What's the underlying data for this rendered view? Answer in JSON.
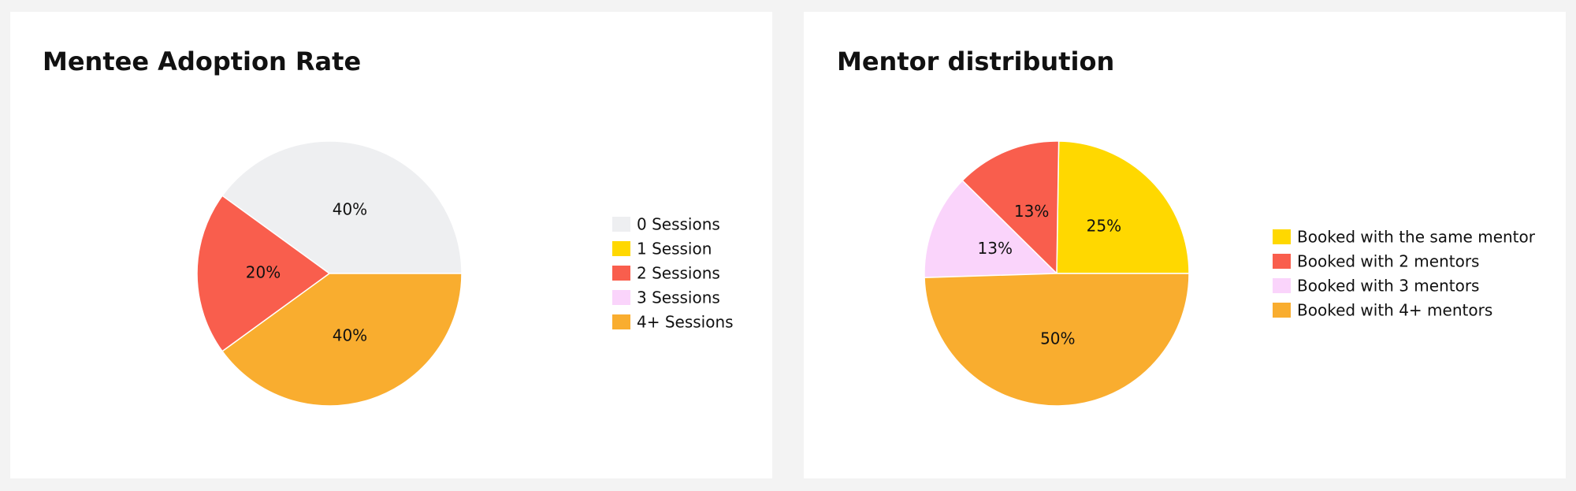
{
  "chart_data": [
    {
      "type": "pie",
      "title": "Mentee Adoption Rate",
      "categories": [
        "0 Sessions",
        "1 Session",
        "2 Sessions",
        "3 Sessions",
        "4+ Sessions"
      ],
      "values": [
        40,
        0,
        20,
        0,
        40
      ],
      "value_labels": [
        "40%",
        null,
        "20%",
        null,
        "40%"
      ],
      "colors": [
        "#eeeff1",
        "#ffd800",
        "#f95e4d",
        "#fad4fb",
        "#f9ad2f"
      ],
      "legend": "right"
    },
    {
      "type": "pie",
      "title": "Mentor distribution",
      "categories": [
        "Booked with the same mentor",
        "Booked with 2 mentors",
        "Booked with 3 mentors",
        "Booked with 4+ mentors"
      ],
      "values": [
        25,
        13,
        13,
        50
      ],
      "value_labels": [
        "25%",
        "13%",
        "13%",
        "50%"
      ],
      "colors": [
        "#ffd800",
        "#f95e4d",
        "#fad4fb",
        "#f9ad2f"
      ],
      "legend": "right"
    }
  ]
}
